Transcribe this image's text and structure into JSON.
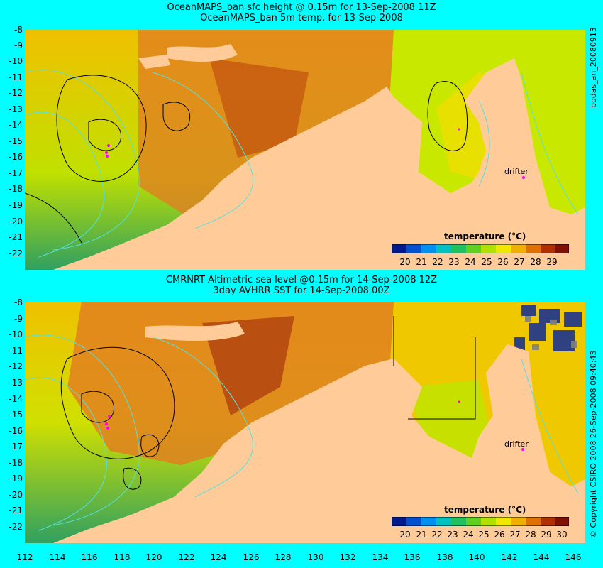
{
  "top_panel": {
    "title_line1": "OceanMAPS_ban sfc height @ 0.15m for 13-Sep-2008 11Z",
    "title_line2": "OceanMAPS_ban 5m temp. for 13-Sep-2008",
    "side_label": "bodas_an_20080913",
    "colorbar_title": "temperature (°C)",
    "colorbar_ticks": [
      "20",
      "21",
      "22",
      "23",
      "24",
      "25",
      "26",
      "27",
      "28",
      "29"
    ],
    "drifter_label": "drifter"
  },
  "bottom_panel": {
    "title_line1": "CMRNRT Altimetric sea level  @0.15m  for 14-Sep-2008 12Z",
    "title_line2": "3day AVHRR SST for 14-Sep-2008 00Z",
    "side_label": "© Copyright CSIRO 2008   26-Sep-2008 09:40:43",
    "colorbar_title": "temperature (°C)",
    "colorbar_ticks": [
      "20",
      "21",
      "22",
      "23",
      "24",
      "25",
      "26",
      "27",
      "28",
      "29",
      "30"
    ],
    "drifter_label": "drifter"
  },
  "axes": {
    "lat_ticks": [
      "-8",
      "-9",
      "-10",
      "-11",
      "-12",
      "-13",
      "-14",
      "-15",
      "-16",
      "-17",
      "-18",
      "-19",
      "-20",
      "-21",
      "-22"
    ],
    "lon_ticks": [
      "112",
      "114",
      "116",
      "118",
      "120",
      "122",
      "124",
      "126",
      "128",
      "130",
      "132",
      "134",
      "136",
      "138",
      "140",
      "142",
      "144",
      "146"
    ]
  },
  "colors": {
    "background": "#00ffff",
    "land": "#ffcc99",
    "contour_cyan": "#55e0e0",
    "contour_black": "#000000",
    "drifter": "#ff00ff"
  },
  "colorbar_colors": [
    "#001a8c",
    "#0050d0",
    "#0090f0",
    "#00c0c0",
    "#20c060",
    "#60d020",
    "#b0e000",
    "#f0e800",
    "#f0b000",
    "#e07000",
    "#b03000",
    "#801000"
  ]
}
